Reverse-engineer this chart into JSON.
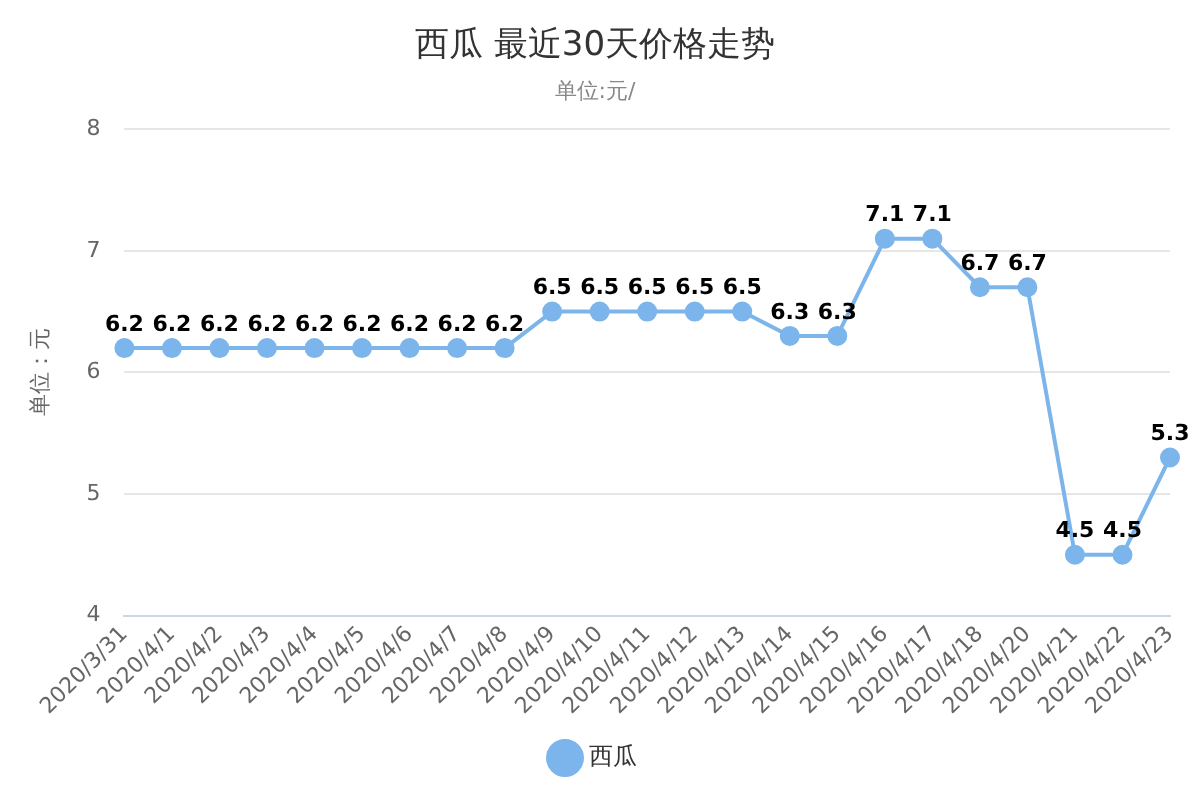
{
  "chart_data": {
    "type": "line",
    "title": "西瓜 最近30天价格走势",
    "subtitle": "单位:元/",
    "ylabel": "单位：元",
    "categories": [
      "2020/3/31",
      "2020/4/1",
      "2020/4/2",
      "2020/4/3",
      "2020/4/4",
      "2020/4/5",
      "2020/4/6",
      "2020/4/7",
      "2020/4/8",
      "2020/4/9",
      "2020/4/10",
      "2020/4/11",
      "2020/4/12",
      "2020/4/13",
      "2020/4/14",
      "2020/4/15",
      "2020/4/16",
      "2020/4/17",
      "2020/4/18",
      "2020/4/20",
      "2020/4/21",
      "2020/4/22",
      "2020/4/23"
    ],
    "series": [
      {
        "name": "西瓜",
        "color": "#7cb5ec",
        "values": [
          6.2,
          6.2,
          6.2,
          6.2,
          6.2,
          6.2,
          6.2,
          6.2,
          6.2,
          6.5,
          6.5,
          6.5,
          6.5,
          6.5,
          6.3,
          6.3,
          7.1,
          7.1,
          6.7,
          6.7,
          4.5,
          4.5,
          5.3
        ]
      }
    ],
    "ylim": [
      4,
      8
    ],
    "yticks": [
      4,
      5,
      6,
      7,
      8
    ],
    "grid": "y",
    "legend": "bottom",
    "marker": "circle",
    "data_labels": true
  }
}
